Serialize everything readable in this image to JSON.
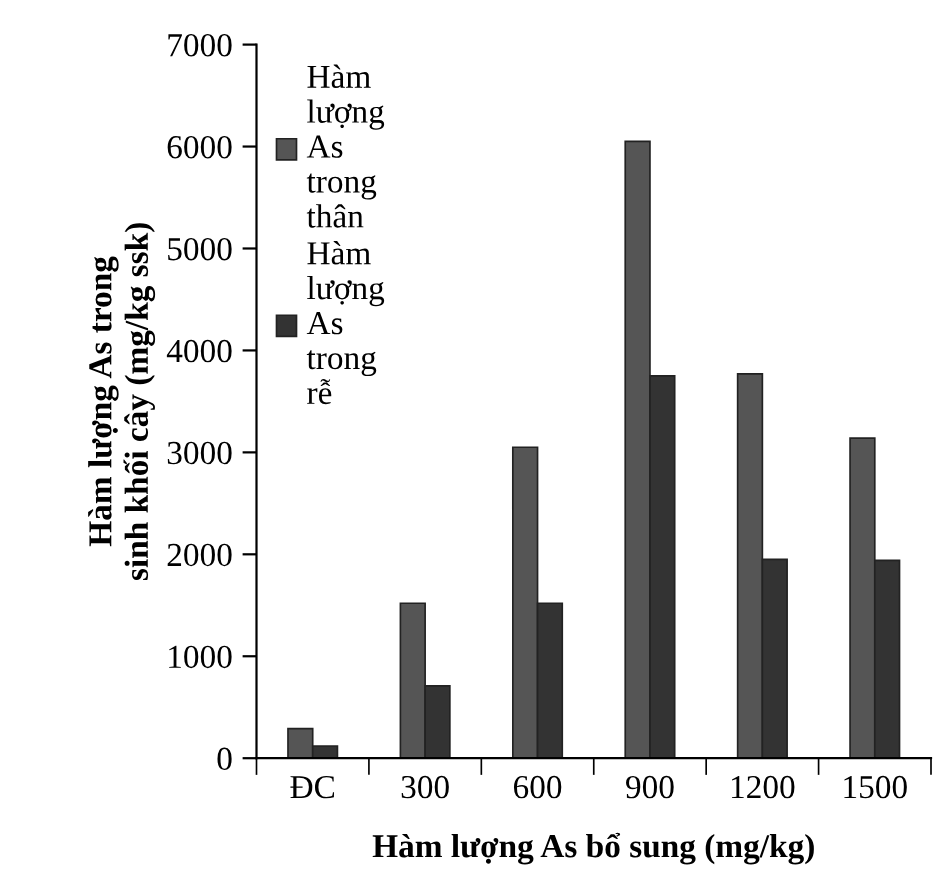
{
  "chart_data": {
    "type": "bar",
    "categories": [
      "ĐC",
      "300",
      "600",
      "900",
      "1200",
      "1500"
    ],
    "series": [
      {
        "name": "Hàm lượng As trong thân",
        "color": "#555555",
        "values": [
          290,
          1520,
          3050,
          6050,
          3770,
          3140
        ]
      },
      {
        "name": "Hàm lượng As trong rễ",
        "color": "#333333",
        "values": [
          120,
          710,
          1520,
          3750,
          1950,
          1940
        ]
      }
    ],
    "xlabel": "Hàm lượng As bổ sung (mg/kg)",
    "ylabel": "Hàm lượng As trong\nsinh khối cây (mg/kg ssk)",
    "ylim": [
      0,
      7000
    ],
    "yticks": [
      0,
      1000,
      2000,
      3000,
      4000,
      5000,
      6000,
      7000
    ],
    "grid": false,
    "legend": "top left"
  }
}
